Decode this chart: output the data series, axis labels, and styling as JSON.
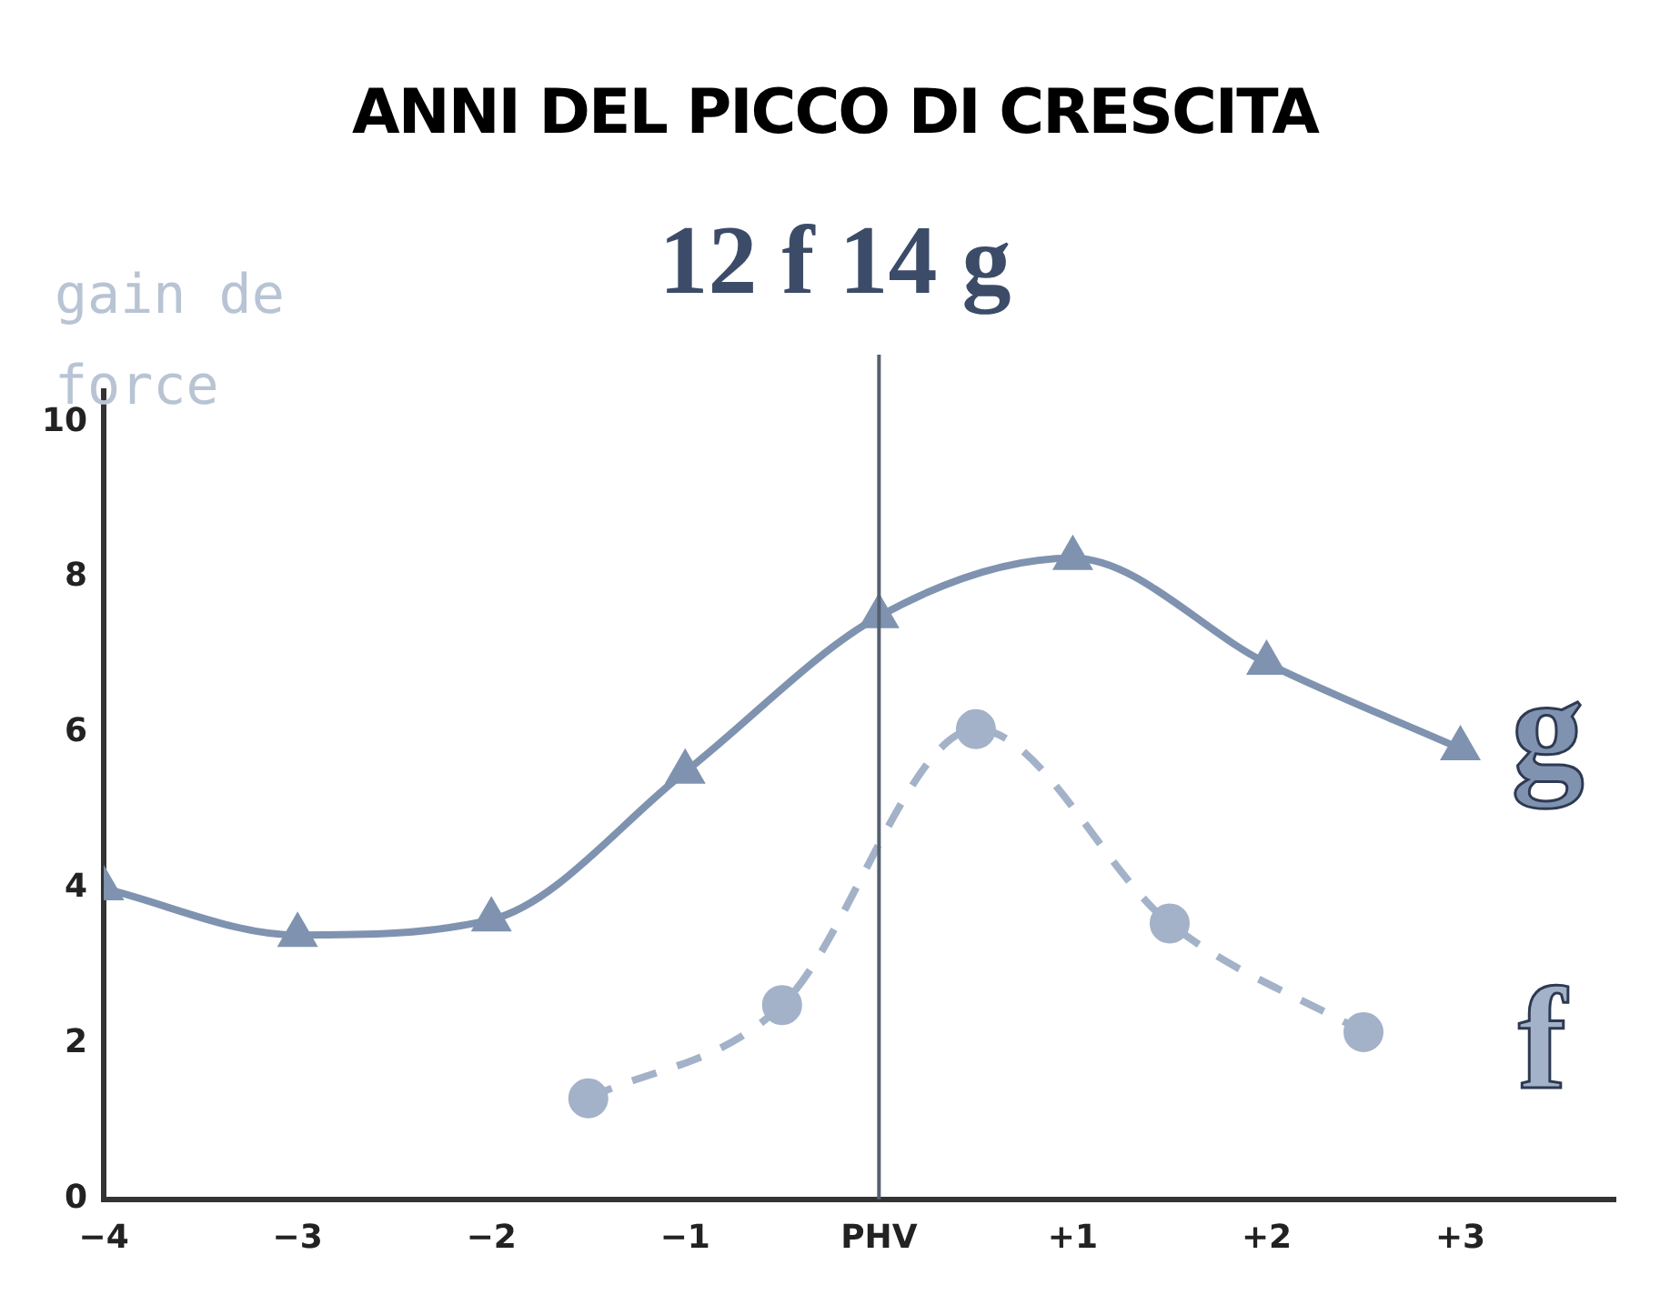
{
  "chart_data": {
    "type": "line",
    "title": "ANNI DEL PICCO DI CRESCITA",
    "subtitle": "12 f 14 g",
    "ylabel": "gain de force",
    "xlim": [
      -4,
      3.8
    ],
    "xticks": [
      {
        "value": -4,
        "label": "−4"
      },
      {
        "value": -3,
        "label": "−3"
      },
      {
        "value": -2,
        "label": "−2"
      },
      {
        "value": -1,
        "label": "−1"
      },
      {
        "value": 0,
        "label": "PHV"
      },
      {
        "value": 1,
        "label": "+1"
      },
      {
        "value": 2,
        "label": "+2"
      },
      {
        "value": 3,
        "label": "+3"
      }
    ],
    "ylim": [
      0,
      10.4
    ],
    "yticks": [
      0,
      2,
      4,
      6,
      8,
      10
    ],
    "grid": false,
    "legend": false,
    "ref_lines": [
      {
        "axis": "x",
        "value": 0,
        "color": "#556070"
      }
    ],
    "series": [
      {
        "name": "g",
        "color": "#7f93b0",
        "marker": "triangle",
        "line_style": "solid",
        "x": [
          -4,
          -3,
          -2,
          -1,
          0,
          1,
          2,
          3
        ],
        "values": [
          4.0,
          3.4,
          3.6,
          5.5,
          7.5,
          8.25,
          6.9,
          5.8
        ]
      },
      {
        "name": "f",
        "color": "#a3b2c8",
        "marker": "circle",
        "line_style": "dashed",
        "x": [
          -1.5,
          -0.5,
          0.5,
          1.5,
          2.5
        ],
        "values": [
          1.3,
          2.5,
          6.05,
          3.55,
          2.15
        ]
      }
    ]
  }
}
